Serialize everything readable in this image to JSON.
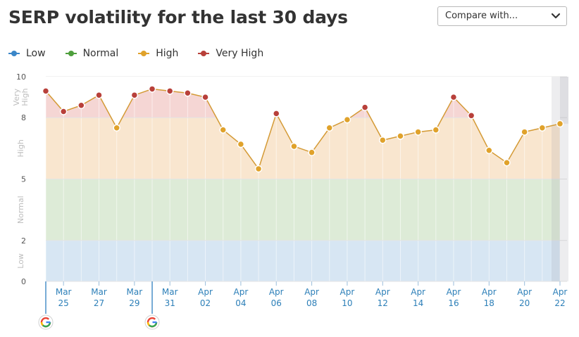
{
  "title": "SERP volatility for the last 30 days",
  "compare": {
    "label": "Compare with...",
    "icon": "chevron-down-icon"
  },
  "legend": [
    {
      "name": "Low",
      "color": "#3a86c8"
    },
    {
      "name": "Normal",
      "color": "#4e9f3d"
    },
    {
      "name": "High",
      "color": "#e0a22b"
    },
    {
      "name": "Very High",
      "color": "#b8403a"
    }
  ],
  "chart_data": {
    "type": "area",
    "ylim": [
      0,
      10
    ],
    "yticks": [
      0,
      2,
      5,
      8,
      10
    ],
    "zones": [
      {
        "name": "Low",
        "from": 0,
        "to": 2,
        "fill": "#d7e6f3"
      },
      {
        "name": "Normal",
        "from": 2,
        "to": 5,
        "fill": "#ddebd7"
      },
      {
        "name": "High",
        "from": 5,
        "to": 8,
        "fill": "#f9e6cf"
      },
      {
        "name": "Very High",
        "from": 8,
        "to": 10,
        "fill": "#f5d6d4"
      }
    ],
    "zone_labels": [
      {
        "text": "Low",
        "at": 1
      },
      {
        "text": "Normal",
        "at": 3.5
      },
      {
        "text": "High",
        "at": 6.5
      },
      {
        "lines": [
          "Very",
          "High"
        ],
        "at": 9
      }
    ],
    "x": [
      "Mar 24",
      "Mar 25",
      "Mar 26",
      "Mar 27",
      "Mar 28",
      "Mar 29",
      "Mar 30",
      "Mar 31",
      "Apr 01",
      "Apr 02",
      "Apr 03",
      "Apr 04",
      "Apr 05",
      "Apr 06",
      "Apr 07",
      "Apr 08",
      "Apr 09",
      "Apr 10",
      "Apr 11",
      "Apr 12",
      "Apr 13",
      "Apr 14",
      "Apr 15",
      "Apr 16",
      "Apr 17",
      "Apr 18",
      "Apr 19",
      "Apr 20",
      "Apr 21",
      "Apr 22"
    ],
    "values": [
      9.3,
      8.3,
      8.6,
      9.1,
      7.5,
      9.1,
      9.4,
      9.3,
      9.2,
      9.0,
      7.4,
      6.7,
      5.5,
      8.2,
      6.6,
      6.3,
      7.5,
      7.9,
      8.5,
      6.9,
      7.1,
      7.3,
      7.4,
      9.0,
      8.1,
      6.4,
      5.8,
      7.3,
      7.5,
      7.7
    ],
    "tick_labels": [
      {
        "index": 1,
        "month": "Mar",
        "day": "25"
      },
      {
        "index": 3,
        "month": "Mar",
        "day": "27"
      },
      {
        "index": 5,
        "month": "Mar",
        "day": "29"
      },
      {
        "index": 7,
        "month": "Mar",
        "day": "31"
      },
      {
        "index": 9,
        "month": "Apr",
        "day": "02"
      },
      {
        "index": 11,
        "month": "Apr",
        "day": "04"
      },
      {
        "index": 13,
        "month": "Apr",
        "day": "06"
      },
      {
        "index": 15,
        "month": "Apr",
        "day": "08"
      },
      {
        "index": 17,
        "month": "Apr",
        "day": "10"
      },
      {
        "index": 19,
        "month": "Apr",
        "day": "12"
      },
      {
        "index": 21,
        "month": "Apr",
        "day": "14"
      },
      {
        "index": 23,
        "month": "Apr",
        "day": "16"
      },
      {
        "index": 25,
        "month": "Apr",
        "day": "18"
      },
      {
        "index": 27,
        "month": "Apr",
        "day": "20"
      },
      {
        "index": 29,
        "month": "Apr",
        "day": "22"
      }
    ],
    "google_markers": [
      0,
      6
    ],
    "highlight_last": true,
    "colors": {
      "line": "#d49a35",
      "high_point": "#e0a22b",
      "very_high_point": "#b8403a"
    }
  }
}
